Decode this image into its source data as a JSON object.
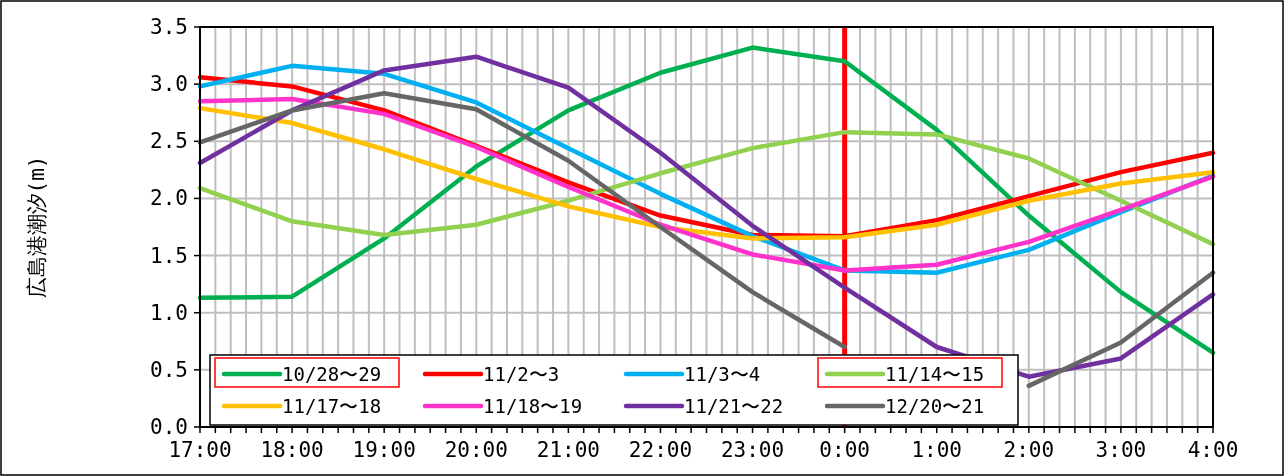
{
  "chart_data": {
    "type": "line",
    "ylabel": "広島港潮汐(m)",
    "categories": [
      "17:00",
      "18:00",
      "19:00",
      "20:00",
      "21:00",
      "22:00",
      "23:00",
      "0:00",
      "1:00",
      "2:00",
      "3:00",
      "4:00"
    ],
    "series": [
      {
        "name": "10/28〜29",
        "color": "#00b050",
        "values": [
          1.13,
          1.14,
          1.65,
          2.28,
          2.77,
          3.1,
          3.32,
          3.2,
          2.6,
          1.85,
          1.18,
          0.65
        ]
      },
      {
        "name": "11/2〜3",
        "color": "#ff0000",
        "values": [
          3.06,
          2.98,
          2.77,
          2.46,
          2.14,
          1.85,
          1.68,
          1.67,
          1.81,
          2.02,
          2.23,
          2.4
        ]
      },
      {
        "name": "11/3〜4",
        "color": "#00b0f0",
        "values": [
          2.98,
          3.16,
          3.09,
          2.84,
          2.44,
          2.04,
          1.67,
          1.37,
          1.35,
          1.55,
          1.88,
          2.2
        ]
      },
      {
        "name": "11/14〜15",
        "color": "#92d050",
        "values": [
          2.09,
          1.8,
          1.68,
          1.77,
          1.98,
          2.22,
          2.44,
          2.58,
          2.56,
          2.35,
          1.98,
          1.6
        ]
      },
      {
        "name": "11/17〜18",
        "color": "#ffc000",
        "values": [
          2.79,
          2.66,
          2.43,
          2.17,
          1.93,
          1.75,
          1.65,
          1.66,
          1.77,
          1.98,
          2.13,
          2.23
        ]
      },
      {
        "name": "11/18〜19",
        "color": "#ff33cc",
        "values": [
          2.85,
          2.87,
          2.74,
          2.45,
          2.1,
          1.77,
          1.51,
          1.37,
          1.42,
          1.62,
          1.9,
          2.19
        ]
      },
      {
        "name": "11/21〜22",
        "color": "#7030a0",
        "values": [
          2.31,
          2.77,
          3.12,
          3.24,
          2.97,
          2.4,
          1.76,
          1.22,
          0.7,
          0.44,
          0.6,
          1.16
        ]
      },
      {
        "name": "12/20〜21",
        "color": "#666666",
        "values": [
          2.49,
          2.77,
          2.92,
          2.78,
          2.33,
          1.75,
          1.18,
          0.7,
          null,
          0.36,
          0.74,
          1.35
        ]
      }
    ],
    "ylim": [
      0,
      3.5
    ],
    "yticks": [
      {
        "value": 0,
        "label": "0.0"
      },
      {
        "value": 0.5,
        "label": "0.5"
      },
      {
        "value": 1,
        "label": "1.0"
      },
      {
        "value": 1.5,
        "label": "1.5"
      },
      {
        "value": 2,
        "label": "2.0"
      },
      {
        "value": 2.5,
        "label": "2.5"
      },
      {
        "value": 3,
        "label": "3.0"
      },
      {
        "value": 3.5,
        "label": "3.5"
      }
    ],
    "ref_lines": [
      {
        "axis": "x",
        "value": "0:00",
        "label": null,
        "color": "#ff0000"
      }
    ],
    "grid": true,
    "legend": "bottom left",
    "marker": "none",
    "line_style": "solid"
  }
}
